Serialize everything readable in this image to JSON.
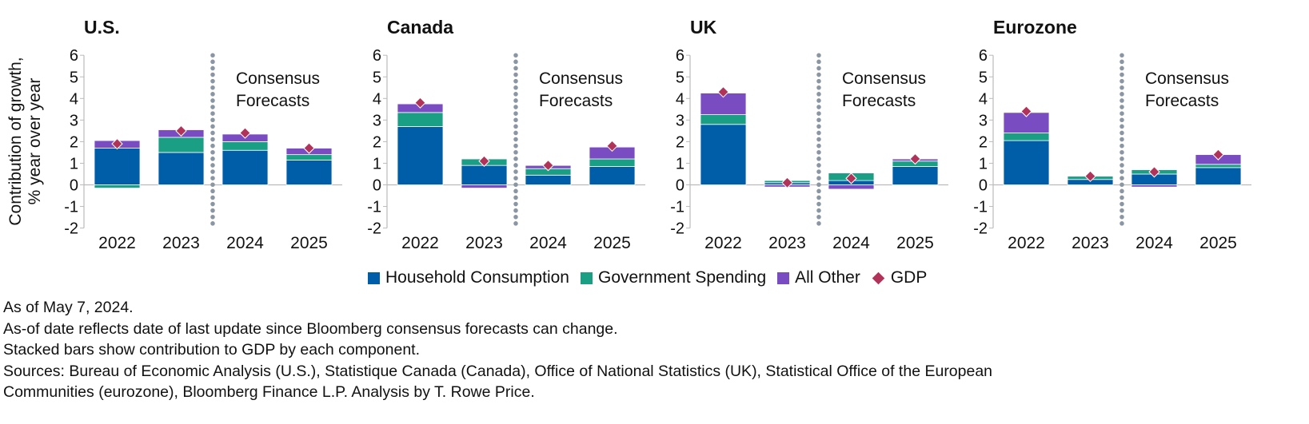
{
  "colors": {
    "household": "#005da8",
    "government": "#1a9e84",
    "other": "#7a4cc1",
    "gdp": "#b0345a",
    "axis": "#bbbbbb",
    "divider": "#8a96a3"
  },
  "chart_data": {
    "type": "bar",
    "stacked": true,
    "ylabel": "Contribution of growth, % year over year",
    "ylim": [
      -2,
      6
    ],
    "yticks": [
      "-2",
      "-1",
      "0",
      "1",
      "2",
      "3",
      "4",
      "5",
      "6"
    ],
    "categories": [
      "2022",
      "2023",
      "2024",
      "2025"
    ],
    "forecast_label": [
      "Consensus",
      "Forecasts"
    ],
    "legend": [
      {
        "key": "household",
        "label": "Household Consumption"
      },
      {
        "key": "government",
        "label": "Government Spending"
      },
      {
        "key": "other",
        "label": "All Other"
      },
      {
        "key": "gdp",
        "label": "GDP"
      }
    ],
    "panels": [
      {
        "title": "U.S.",
        "household": [
          1.7,
          1.5,
          1.6,
          1.15
        ],
        "government": [
          -0.15,
          0.7,
          0.4,
          0.25
        ],
        "other": [
          0.35,
          0.35,
          0.35,
          0.3
        ],
        "gdp": [
          1.9,
          2.5,
          2.4,
          1.7
        ]
      },
      {
        "title": "Canada",
        "household": [
          2.7,
          0.9,
          0.45,
          0.85
        ],
        "government": [
          0.65,
          0.3,
          0.3,
          0.35
        ],
        "other": [
          0.4,
          -0.15,
          0.15,
          0.55
        ],
        "gdp": [
          3.8,
          1.1,
          0.9,
          1.8
        ]
      },
      {
        "title": "UK",
        "household": [
          2.8,
          0.1,
          0.2,
          0.85
        ],
        "government": [
          0.45,
          0.1,
          0.35,
          0.25
        ],
        "other": [
          1.0,
          -0.1,
          -0.2,
          0.1
        ],
        "gdp": [
          4.3,
          0.1,
          0.3,
          1.2
        ]
      },
      {
        "title": "Eurozone",
        "household": [
          2.05,
          0.25,
          0.5,
          0.8
        ],
        "government": [
          0.35,
          0.15,
          0.2,
          0.15
        ],
        "other": [
          0.95,
          0.0,
          -0.1,
          0.45
        ],
        "gdp": [
          3.4,
          0.4,
          0.6,
          1.4
        ]
      }
    ]
  },
  "notes": [
    "As of May 7, 2024.",
    "As-of date reflects date of last update since Bloomberg consensus forecasts can change.",
    "Stacked bars show contribution to GDP by each component.",
    "Sources: Bureau of Economic Analysis (U.S.), Statistique Canada (Canada), Office of National Statistics (UK), Statistical Office of the European",
    "Communities (eurozone), Bloomberg Finance L.P. Analysis by T. Rowe Price."
  ]
}
